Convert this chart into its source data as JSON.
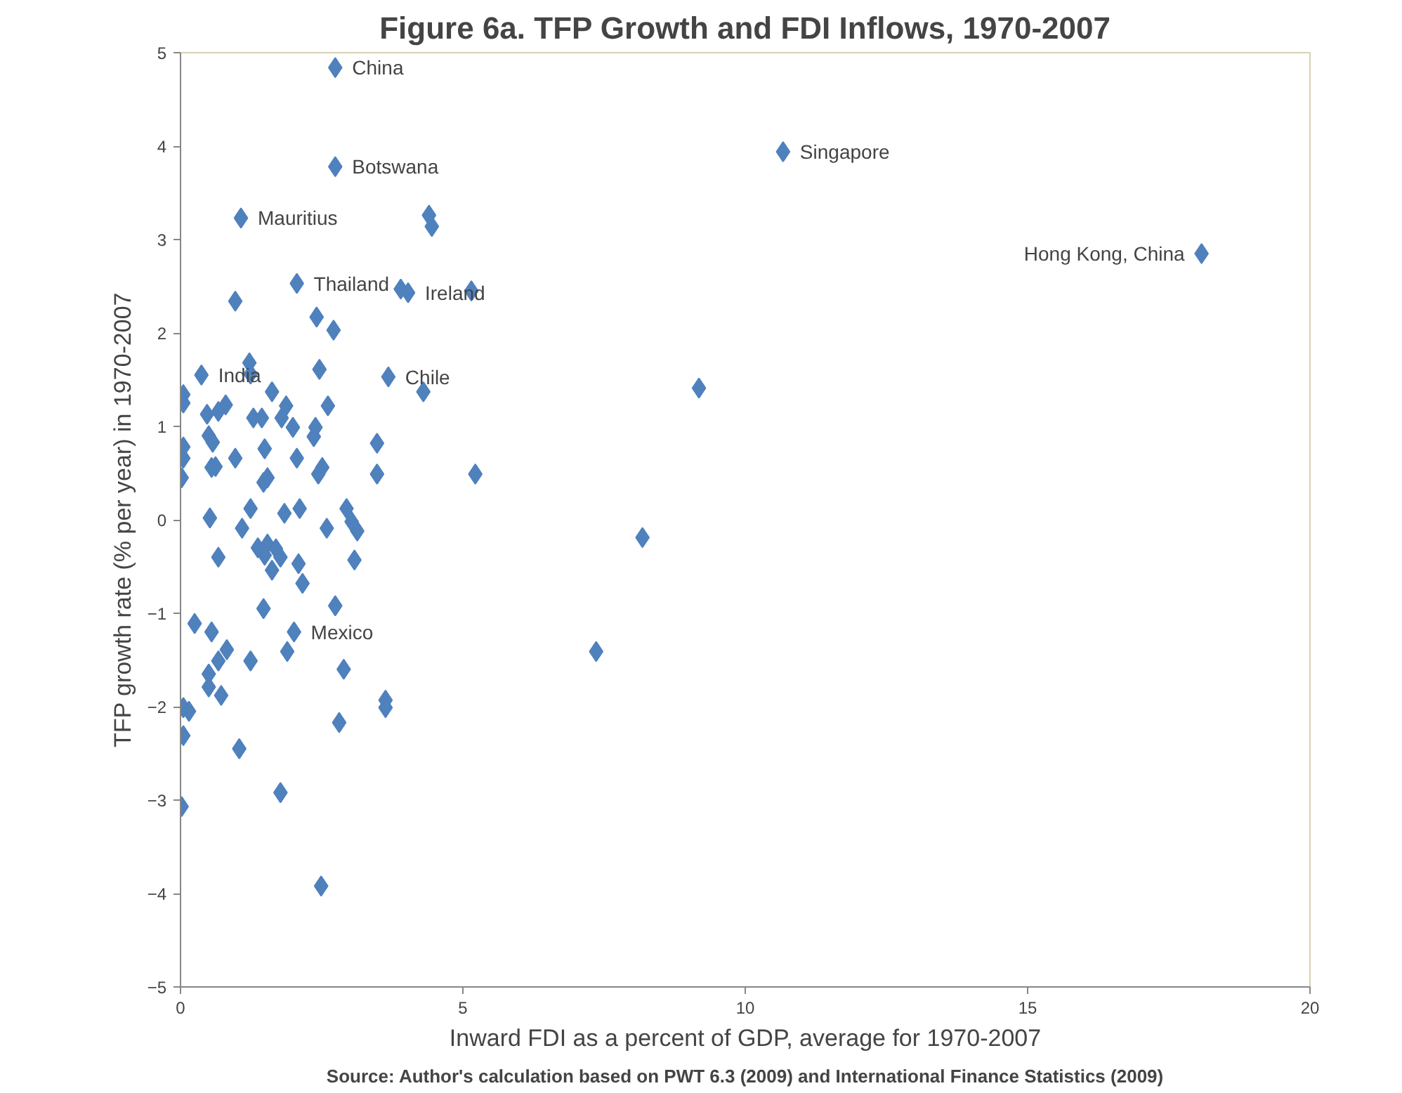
{
  "chart_data": {
    "type": "scatter",
    "title": "Figure 6a. TFP Growth and FDI Inflows, 1970-2007",
    "xlabel": "Inward FDI as a percent of GDP, average for 1970-2007",
    "ylabel": "TFP growth rate (% per year) in 1970-2007",
    "x": [
      2.74,
      2.74,
      1.07,
      4.4,
      4.45,
      10.67,
      18.08,
      2.06,
      0.97,
      4.03,
      3.9,
      5.15,
      2.41,
      2.71,
      0.37,
      1.22,
      1.24,
      2.46,
      3.68,
      4.3,
      9.18,
      0.05,
      0.05,
      0.47,
      0.8,
      0.67,
      1.62,
      1.87,
      1.79,
      1.44,
      1.29,
      1.99,
      2.61,
      2.39,
      0.5,
      0.57,
      3.48,
      3.48,
      5.22,
      0.05,
      0.05,
      0.02,
      0.97,
      1.49,
      0.55,
      0.62,
      2.06,
      2.51,
      2.44,
      2.36,
      1.47,
      1.54,
      0.52,
      1.24,
      1.09,
      1.84,
      2.11,
      2.94,
      3.03,
      3.13,
      2.59,
      0.67,
      1.37,
      1.54,
      1.49,
      1.69,
      1.77,
      1.62,
      2.09,
      2.16,
      3.08,
      1.47,
      2.74,
      0.25,
      0.55,
      2.01,
      0.82,
      1.24,
      1.89,
      2.89,
      7.36,
      8.18,
      0.5,
      0.67,
      0.5,
      0.72,
      0.05,
      0.15,
      3.63,
      3.63,
      2.81,
      0.05,
      1.04,
      1.77,
      0.02,
      2.49
    ],
    "series": [
      {
        "color": "#4f81bd",
        "values": [
          4.84,
          3.78,
          3.23,
          3.26,
          3.14,
          3.94,
          2.85,
          2.53,
          2.34,
          2.43,
          2.47,
          2.45,
          2.17,
          2.03,
          1.55,
          1.68,
          1.56,
          1.61,
          1.53,
          1.37,
          1.41,
          1.34,
          1.25,
          1.13,
          1.23,
          1.16,
          1.37,
          1.22,
          1.09,
          1.09,
          1.09,
          0.99,
          1.22,
          0.99,
          0.9,
          0.83,
          0.82,
          0.49,
          0.49,
          0.78,
          0.66,
          0.45,
          0.66,
          0.76,
          0.56,
          0.57,
          0.66,
          0.56,
          0.49,
          0.89,
          0.4,
          0.45,
          0.02,
          0.12,
          -0.09,
          0.07,
          0.12,
          0.12,
          -0.02,
          -0.12,
          -0.09,
          -0.4,
          -0.3,
          -0.26,
          -0.38,
          -0.31,
          -0.4,
          -0.54,
          -0.47,
          -0.68,
          -0.43,
          -0.95,
          -0.92,
          -1.11,
          -1.2,
          -1.2,
          -1.39,
          -1.51,
          -1.41,
          -1.6,
          -1.41,
          -0.19,
          -1.65,
          -1.51,
          -1.79,
          -1.88,
          -2.01,
          -2.05,
          -1.93,
          -2.01,
          -2.17,
          -2.31,
          -2.45,
          -2.92,
          -3.07,
          -3.92
        ]
      }
    ],
    "xlim": [
      0,
      20
    ],
    "xticks": [
      0,
      5,
      10,
      15,
      20
    ],
    "ylim": [
      -5,
      5
    ],
    "yticks": [
      -5,
      -4,
      -3,
      -2,
      -1,
      0,
      1,
      2,
      3,
      4,
      5
    ],
    "grid": false,
    "marker": "diamond",
    "annotations": [
      {
        "text": "China",
        "x": 2.74,
        "y": 4.84
      },
      {
        "text": "Botswana",
        "x": 2.74,
        "y": 3.78
      },
      {
        "text": "Mauritius",
        "x": 1.07,
        "y": 3.23
      },
      {
        "text": "Singapore",
        "x": 10.67,
        "y": 3.94
      },
      {
        "text": "Hong Kong, China",
        "x": 18.08,
        "y": 2.85
      },
      {
        "text": "Thailand",
        "x": 2.06,
        "y": 2.53
      },
      {
        "text": "Ireland",
        "x": 4.03,
        "y": 2.43
      },
      {
        "text": "India",
        "x": 0.37,
        "y": 1.55
      },
      {
        "text": "Chile",
        "x": 3.68,
        "y": 1.53
      },
      {
        "text": "Mexico",
        "x": 2.01,
        "y": -1.2
      },
      "Source: Author's calculation based on PWT 6.3 (2009) and International Finance Statistics (2009)"
    ]
  }
}
